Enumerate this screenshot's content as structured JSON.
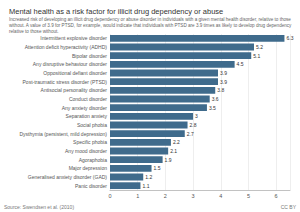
{
  "chart_data": {
    "type": "bar",
    "title": "Mental health as a risk factor for illicit drug dependency or abuse",
    "subtitle": "Increased risk of developing an illicit drug dependency or abuse disorder in individuals with a given mental health disorder, relative to those without. A value of 3.9 for PTSD, for example, would indicate that individuals with PTSD are 3.9 times as likely to develop drug dependency relative to those without.",
    "categories": [
      "Intermittent explosive disorder",
      "Attention deficit hyperactivity (ADHD)",
      "Bipolar disorder",
      "Any disruptive behaviour disorder",
      "Oppositional defiant disorder",
      "Post-traumatic stress disorder (PTSD)",
      "Antisocial personality disorder",
      "Conduct disorder",
      "Any anxiety disorder",
      "Separation anxiety",
      "Social phobia",
      "Dysthymia (persistent, mild depression)",
      "Specific phobia",
      "Any mood disorder",
      "Agoraphobia",
      "Major depression",
      "Generalised anxiety disorder (GAD)",
      "Panic disorder"
    ],
    "values": [
      6.3,
      5.2,
      5.1,
      4.5,
      3.9,
      3.9,
      3.8,
      3.6,
      3.5,
      3,
      2.8,
      2.7,
      2.2,
      2.1,
      1.9,
      1.5,
      1.2,
      1.1
    ],
    "color": "#3f6b8c",
    "orientation": "horizontal",
    "data_labels": true,
    "grid": true,
    "xlim": [
      0,
      6.5
    ],
    "xticks": [
      0,
      1,
      2,
      3,
      4,
      5,
      6
    ],
    "source": "Source: Swendsen et al. (2010)",
    "license": "CC BY"
  }
}
